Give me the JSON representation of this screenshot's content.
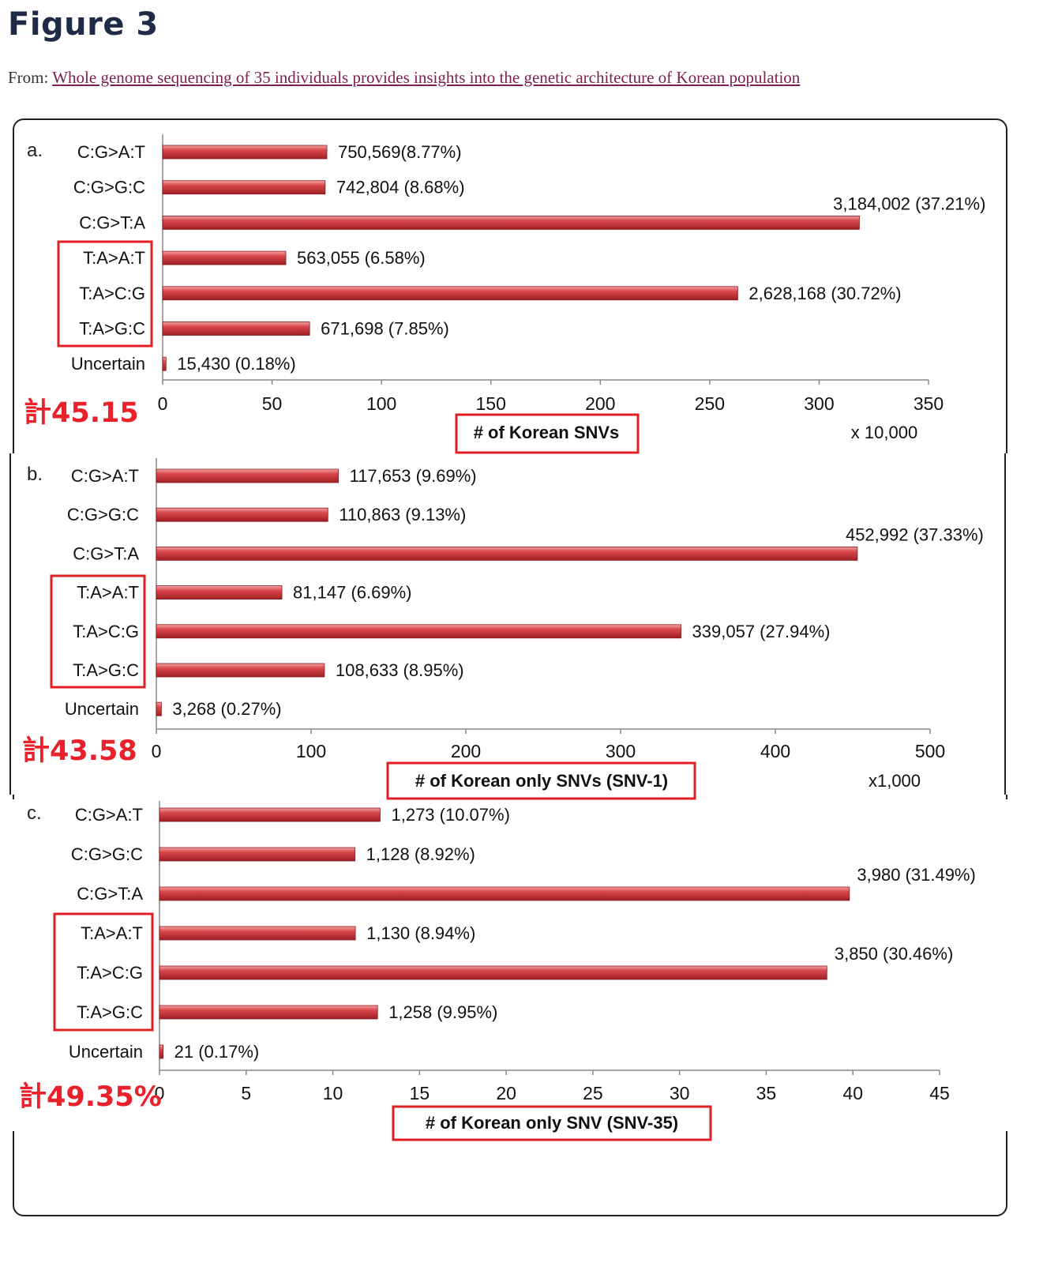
{
  "header": {
    "figure_title": "Figure 3",
    "from_label": "From:",
    "from_link": "Whole genome sequencing of 35 individuals provides insights into the genetic architecture of Korean population"
  },
  "colors": {
    "bar": "#c83a3e",
    "bar_highlight": "#f2a0a2",
    "highlight_box": "#e21f26",
    "total_text": "#e8212b"
  },
  "chart_data": [
    {
      "type": "bar",
      "orientation": "horizontal",
      "panel_label": "a.",
      "categories": [
        "C:G>A:T",
        "C:G>G:C",
        "C:G>T:A",
        "T:A>A:T",
        "T:A>C:G",
        "T:A>G:C",
        "Uncertain"
      ],
      "values": [
        75.0569,
        74.2804,
        318.4002,
        56.3055,
        262.8168,
        67.1698,
        1.543
      ],
      "data_labels": [
        "750,569(8.77%)",
        "742,804 (8.68%)",
        "3,184,002 (37.21%)",
        "563,055 (6.58%)",
        "2,628,168 (30.72%)",
        "671,698 (7.85%)",
        "15,430 (0.18%)"
      ],
      "xlabel": "# of Korean SNVs",
      "x_unit_label": "x 10,000",
      "xlim": [
        0,
        350
      ],
      "xticks": [
        "0",
        "50",
        "100",
        "150",
        "200",
        "250",
        "300",
        "350"
      ],
      "annotation": "計45.15"
    },
    {
      "type": "bar",
      "orientation": "horizontal",
      "panel_label": "b.",
      "categories": [
        "C:G>A:T",
        "C:G>G:C",
        "C:G>T:A",
        "T:A>A:T",
        "T:A>C:G",
        "T:A>G:C",
        "Uncertain"
      ],
      "values": [
        117.653,
        110.863,
        452.992,
        81.147,
        339.057,
        108.633,
        3.268
      ],
      "data_labels": [
        "117,653 (9.69%)",
        "110,863 (9.13%)",
        "452,992 (37.33%)",
        "81,147 (6.69%)",
        "339,057 (27.94%)",
        "108,633 (8.95%)",
        "3,268 (0.27%)"
      ],
      "xlabel": "# of Korean only SNVs (SNV-1)",
      "x_unit_label": "x1,000",
      "xlim": [
        0,
        500
      ],
      "xticks": [
        "0",
        "100",
        "200",
        "300",
        "400",
        "500"
      ],
      "annotation": "計43.58"
    },
    {
      "type": "bar",
      "orientation": "horizontal",
      "panel_label": "c.",
      "categories": [
        "C:G>A:T",
        "C:G>G:C",
        "C:G>T:A",
        "T:A>A:T",
        "T:A>C:G",
        "T:A>G:C",
        "Uncertain"
      ],
      "values": [
        12.73,
        11.28,
        39.8,
        11.3,
        38.5,
        12.58,
        0.21
      ],
      "data_labels": [
        "1,273 (10.07%)",
        "1,128 (8.92%)",
        "3,980 (31.49%)",
        "1,130 (8.94%)",
        "3,850 (30.46%)",
        "1,258 (9.95%)",
        "21 (0.17%)"
      ],
      "xlabel": "# of Korean only SNV (SNV-35)",
      "x_unit_label": "",
      "xlim": [
        0,
        45
      ],
      "xticks": [
        "0",
        "5",
        "10",
        "15",
        "20",
        "25",
        "30",
        "35",
        "40",
        "45"
      ],
      "annotation": "計49.35%"
    }
  ]
}
